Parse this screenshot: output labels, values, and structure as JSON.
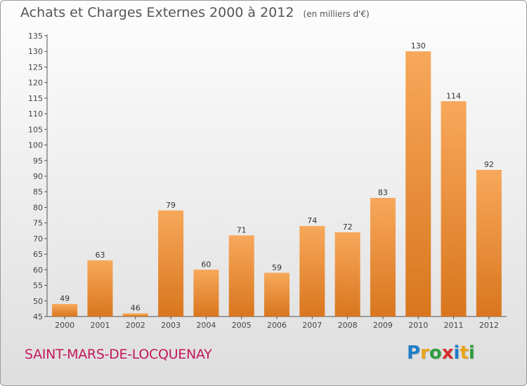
{
  "header": {
    "title": "Achats et Charges Externes 2000 à 2012",
    "unit": "(en milliers d'€)"
  },
  "footer": {
    "town": "SAINT-MARS-DE-LOCQUENAY",
    "logo_letters": [
      "P",
      "r",
      "o",
      "x",
      "i",
      "t",
      "i"
    ],
    "logo_colors": [
      "#1e7ec8",
      "#e8a317",
      "#2e9e3e",
      "#d52d2d",
      "#1e7ec8",
      "#e8a317",
      "#2e9e3e"
    ]
  },
  "chart_data": {
    "type": "bar",
    "categories": [
      "2000",
      "2001",
      "2002",
      "2003",
      "2004",
      "2005",
      "2006",
      "2007",
      "2008",
      "2009",
      "2010",
      "2011",
      "2012"
    ],
    "values": [
      49,
      63,
      46,
      79,
      60,
      71,
      59,
      74,
      72,
      83,
      130,
      114,
      92
    ],
    "title": "Achats et Charges Externes 2000 à 2012",
    "unit": "(en milliers d'€)",
    "ylim": [
      45,
      135
    ],
    "yticks": [
      45,
      50,
      55,
      60,
      65,
      70,
      75,
      80,
      85,
      90,
      95,
      100,
      105,
      110,
      115,
      120,
      125,
      130,
      135
    ],
    "grid": false,
    "data_labels": true,
    "colors": {
      "bar_light": "#f7a85a",
      "bar_dark": "#d9761e",
      "axis": "#555555"
    }
  }
}
